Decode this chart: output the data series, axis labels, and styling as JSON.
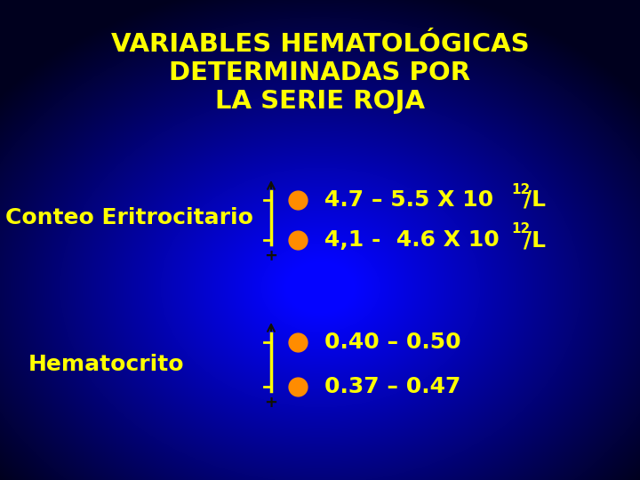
{
  "title_lines": [
    "VARIABLES HEMATOLÓGICAS",
    "DETERMINADAS POR",
    "LA SERIE ROJA"
  ],
  "title_color": "#FFFF00",
  "title_fontsize": 21,
  "bg_color": "#00008B",
  "label1": "Conteo Eritrocitario",
  "label2": "Hematocrito",
  "label_color": "#FFFF00",
  "label_fontsize": 18,
  "dot_color": "#FF8C00",
  "text1_top_main": "4.7 – 5.5 X 10",
  "text1_top_sup": "12",
  "text1_top_end": "/L",
  "text1_bot_main": "4,1 -  4.6 X 10",
  "text1_bot_sup": "12",
  "text1_bot_end": "/L",
  "text2_top": "0.40 – 0.50",
  "text2_bot": "0.37 – 0.47",
  "text_color": "#FFFF00",
  "text_fontsize": 18,
  "arrow_color": "#000000",
  "brace_color": "#FFFF00"
}
